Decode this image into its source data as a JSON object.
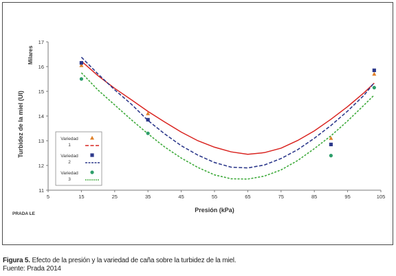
{
  "figure": {
    "caption_label": "Figura 5.",
    "caption_text": "Efecto de la presión y la variedad de caña sobre la turbidez de la miel.",
    "source": "Fuente: Prada 2014"
  },
  "chart_data": {
    "type": "scatter",
    "title": "",
    "xlabel": "Presión (kPa)",
    "ylabel": "Turbidez de la miel (UI)",
    "yunit": "Milares",
    "watermark": "PRADA LE",
    "xlim": [
      5,
      105
    ],
    "ylim": [
      11,
      17
    ],
    "xticks": [
      5,
      15,
      25,
      35,
      45,
      55,
      65,
      75,
      85,
      95,
      105
    ],
    "yticks": [
      11,
      12,
      13,
      14,
      15,
      16,
      17
    ],
    "grid": false,
    "legend_position": "left",
    "series": [
      {
        "name": "Variedad 1",
        "color": "#e0812a",
        "fit_color": "#d9231f",
        "marker": "triangle",
        "x": [
          15,
          35,
          90,
          103
        ],
        "y": [
          16.05,
          14.1,
          13.1,
          15.7
        ],
        "fit_x": [
          15,
          20,
          25,
          30,
          35,
          40,
          45,
          50,
          55,
          60,
          65,
          70,
          75,
          80,
          85,
          90,
          95,
          100,
          103
        ],
        "fit_y": [
          16.22,
          15.63,
          15.12,
          14.66,
          14.19,
          13.76,
          13.35,
          13.0,
          12.74,
          12.55,
          12.45,
          12.52,
          12.7,
          13.01,
          13.4,
          13.87,
          14.38,
          14.95,
          15.33
        ]
      },
      {
        "name": "Variedad 2",
        "color": "#2e3a8c",
        "fit_color": "#2e3a8c",
        "marker": "square",
        "x": [
          15,
          35,
          90,
          103
        ],
        "y": [
          16.15,
          13.85,
          12.85,
          15.85
        ],
        "fit_x": [
          15,
          20,
          25,
          30,
          35,
          40,
          45,
          50,
          55,
          60,
          65,
          70,
          75,
          80,
          85,
          90,
          95,
          100,
          103
        ],
        "fit_y": [
          16.38,
          15.7,
          15.06,
          14.48,
          13.82,
          13.28,
          12.8,
          12.42,
          12.12,
          11.93,
          11.9,
          12.02,
          12.28,
          12.64,
          13.1,
          13.62,
          14.2,
          14.85,
          15.35
        ]
      },
      {
        "name": "Variedad 3",
        "color": "#2e9e6a",
        "fit_color": "#3daa3a",
        "marker": "circle",
        "x": [
          15,
          35,
          90,
          103
        ],
        "y": [
          15.5,
          13.3,
          12.4,
          15.15
        ],
        "fit_x": [
          15,
          20,
          25,
          30,
          35,
          40,
          45,
          50,
          55,
          60,
          65,
          70,
          75,
          80,
          85,
          90,
          95,
          100,
          103
        ],
        "fit_y": [
          15.75,
          15.05,
          14.45,
          13.85,
          13.28,
          12.75,
          12.3,
          11.92,
          11.62,
          11.46,
          11.45,
          11.57,
          11.82,
          12.2,
          12.68,
          13.2,
          13.8,
          14.45,
          14.85
        ]
      }
    ]
  }
}
